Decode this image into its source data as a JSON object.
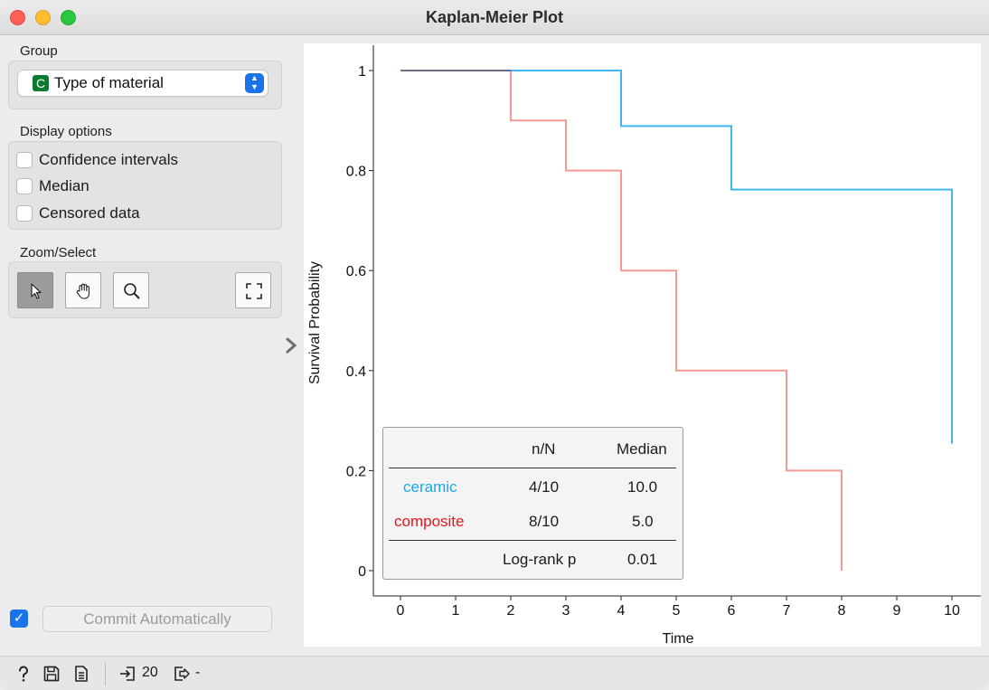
{
  "window": {
    "title": "Kaplan-Meier Plot"
  },
  "sidebar": {
    "group": {
      "label": "Group",
      "variable_type_badge": "C",
      "selected": "Type of material"
    },
    "display_options": {
      "label": "Display options",
      "items": [
        {
          "label": "Confidence intervals",
          "checked": false
        },
        {
          "label": "Median",
          "checked": false
        },
        {
          "label": "Censored data",
          "checked": false
        }
      ]
    },
    "zoom_select": {
      "label": "Zoom/Select",
      "tools": [
        {
          "icon": "pointer-icon",
          "active": true
        },
        {
          "icon": "hand-pan-icon",
          "active": false
        },
        {
          "icon": "magnifier-icon",
          "active": false
        },
        {
          "icon": "reset-zoom-icon",
          "active": false
        }
      ]
    },
    "commit": {
      "checked": true,
      "label": "Commit Automatically"
    }
  },
  "statusbar": {
    "icons": [
      "help-icon",
      "save-icon",
      "report-icon"
    ],
    "input_count": "20",
    "output_count": "-"
  },
  "legend_table": {
    "headers": [
      "n/N",
      "Median"
    ],
    "rows": [
      {
        "group": "ceramic",
        "nN": "4/10",
        "median": "10.0",
        "color": "#1ba7f0"
      },
      {
        "group": "composite",
        "nN": "8/10",
        "median": "5.0",
        "color": "#e8141e"
      }
    ],
    "footer": {
      "label": "Log-rank p",
      "value": "0.01"
    }
  },
  "chart_data": {
    "type": "line",
    "step": true,
    "xlabel": "Time",
    "ylabel": "Survival Probability",
    "xlim": [
      0,
      10
    ],
    "ylim": [
      0,
      1
    ],
    "x_ticks": [
      "0",
      "1",
      "2",
      "3",
      "4",
      "5",
      "6",
      "7",
      "8",
      "9",
      "10"
    ],
    "y_ticks": [
      "0",
      "0.2",
      "0.4",
      "0.6",
      "0.8",
      "1"
    ],
    "grid": false,
    "series": [
      {
        "name": "ceramic",
        "color": "#35b2ec",
        "points": [
          [
            0,
            1.0
          ],
          [
            4,
            1.0
          ],
          [
            4,
            0.889
          ],
          [
            6,
            0.889
          ],
          [
            6,
            0.762
          ],
          [
            10,
            0.762
          ],
          [
            10,
            0.254
          ]
        ]
      },
      {
        "name": "composite",
        "color": "#f4938d",
        "points": [
          [
            0,
            1.0
          ],
          [
            2,
            1.0
          ],
          [
            2,
            0.9
          ],
          [
            3,
            0.9
          ],
          [
            3,
            0.8
          ],
          [
            4,
            0.8
          ],
          [
            4,
            0.6
          ],
          [
            5,
            0.6
          ],
          [
            5,
            0.4
          ],
          [
            7,
            0.4
          ],
          [
            7,
            0.2
          ],
          [
            8,
            0.2
          ],
          [
            8,
            0.0
          ]
        ]
      }
    ]
  }
}
